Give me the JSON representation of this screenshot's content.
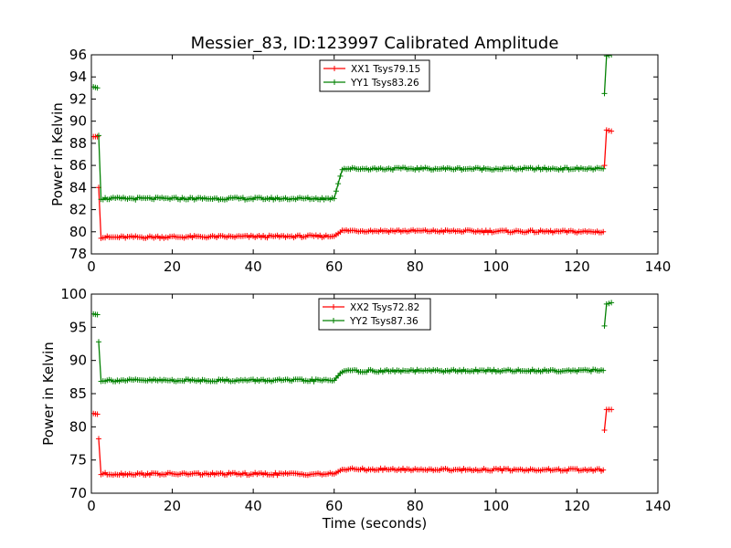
{
  "figure": {
    "title": "Messier_83, ID:123997 Calibrated Amplitude"
  },
  "colors": {
    "xx": "#ff0000",
    "yy": "#008000",
    "axes": "#000000",
    "background": "#ffffff"
  },
  "chart_data": [
    {
      "type": "line",
      "title": "Messier_83, ID:123997 Calibrated Amplitude",
      "xlabel": "",
      "ylabel": "Power in Kelvin",
      "xlim": [
        0,
        140
      ],
      "ylim": [
        78,
        96
      ],
      "xticks": [
        0,
        20,
        40,
        60,
        80,
        100,
        120,
        140
      ],
      "yticks": [
        78,
        80,
        82,
        84,
        86,
        88,
        90,
        92,
        94,
        96
      ],
      "grid": false,
      "legend_position": "top-center",
      "series": [
        {
          "name": "XX1 Tsys79.15",
          "color": "#ff0000",
          "segments": [
            {
              "x": [
                0.5,
                1.5
              ],
              "y": [
                88.6,
                88.6
              ]
            },
            {
              "x": [
                1.8,
                2.4,
                60,
                62,
                126.5
              ],
              "y": [
                84.0,
                79.5,
                79.6,
                80.1,
                80.0
              ]
            },
            {
              "x": [
                126.8,
                127.3,
                128.5
              ],
              "y": [
                86.0,
                89.2,
                89.1
              ]
            }
          ]
        },
        {
          "name": "YY1 Tsys83.26",
          "color": "#008000",
          "segments": [
            {
              "x": [
                0.5,
                1.5
              ],
              "y": [
                93.1,
                93.0
              ]
            },
            {
              "x": [
                1.8,
                2.4,
                60,
                62,
                126.5
              ],
              "y": [
                88.7,
                83.0,
                83.0,
                85.7,
                85.7
              ]
            },
            {
              "x": [
                126.8,
                127.3,
                128.5
              ],
              "y": [
                92.5,
                95.9,
                96.0
              ]
            }
          ]
        }
      ]
    },
    {
      "type": "line",
      "title": "",
      "xlabel": "Time (seconds)",
      "ylabel": "Power in Kelvin",
      "xlim": [
        0,
        140
      ],
      "ylim": [
        70,
        100
      ],
      "xticks": [
        0,
        20,
        40,
        60,
        80,
        100,
        120,
        140
      ],
      "yticks": [
        70,
        75,
        80,
        85,
        90,
        95,
        100
      ],
      "grid": false,
      "legend_position": "top-center",
      "series": [
        {
          "name": "XX2 Tsys72.82",
          "color": "#ff0000",
          "segments": [
            {
              "x": [
                0.5,
                1.5
              ],
              "y": [
                82.0,
                81.9
              ]
            },
            {
              "x": [
                1.8,
                2.4,
                60,
                62,
                126.5
              ],
              "y": [
                78.2,
                72.9,
                72.9,
                73.6,
                73.5
              ]
            },
            {
              "x": [
                126.8,
                127.3,
                128.5
              ],
              "y": [
                79.5,
                82.6,
                82.6
              ]
            }
          ]
        },
        {
          "name": "YY2 Tsys87.36",
          "color": "#008000",
          "segments": [
            {
              "x": [
                0.5,
                1.5
              ],
              "y": [
                97.0,
                96.9
              ]
            },
            {
              "x": [
                1.8,
                2.4,
                60,
                62,
                126.5
              ],
              "y": [
                92.8,
                87.0,
                87.0,
                88.4,
                88.5
              ]
            },
            {
              "x": [
                126.8,
                127.3,
                128.5
              ],
              "y": [
                95.2,
                98.5,
                98.7
              ]
            }
          ]
        }
      ]
    }
  ]
}
